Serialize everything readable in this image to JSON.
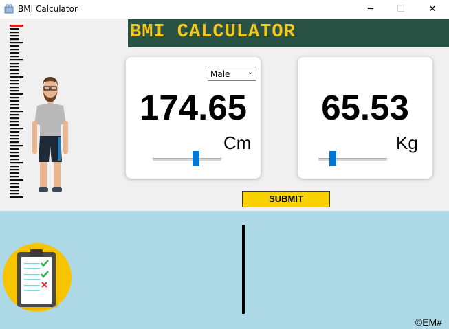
{
  "window": {
    "title": "BMI Calculator",
    "minimize": "─",
    "maximize": "☐",
    "close": "✕"
  },
  "header": {
    "title": "BMI CALCULATOR"
  },
  "height_card": {
    "gender": "Male",
    "value": "174.65",
    "unit": "Cm",
    "slider_fraction": 0.64
  },
  "weight_card": {
    "value": "65.53",
    "unit": "Kg",
    "slider_fraction": 0.18
  },
  "submit_label": "SUBMIT",
  "result": {
    "copyright": "©EM#"
  },
  "colors": {
    "header_bg": "#2a5244",
    "header_text": "#f5c518",
    "submit_bg": "#f9d000",
    "result_bg": "#add8e6",
    "slider_thumb": "#0078d7"
  }
}
